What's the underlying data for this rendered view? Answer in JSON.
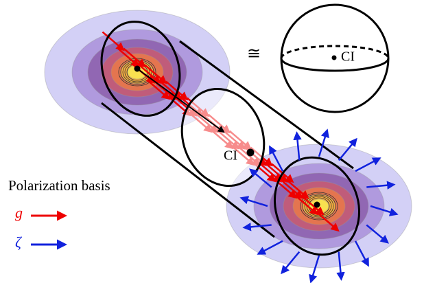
{
  "labels": {
    "congruent": "≅",
    "ci_sphere": "CI",
    "ci_cylinder": "CI",
    "legend_title": "Polarization basis",
    "g": "g",
    "zeta": "ζ"
  }
}
